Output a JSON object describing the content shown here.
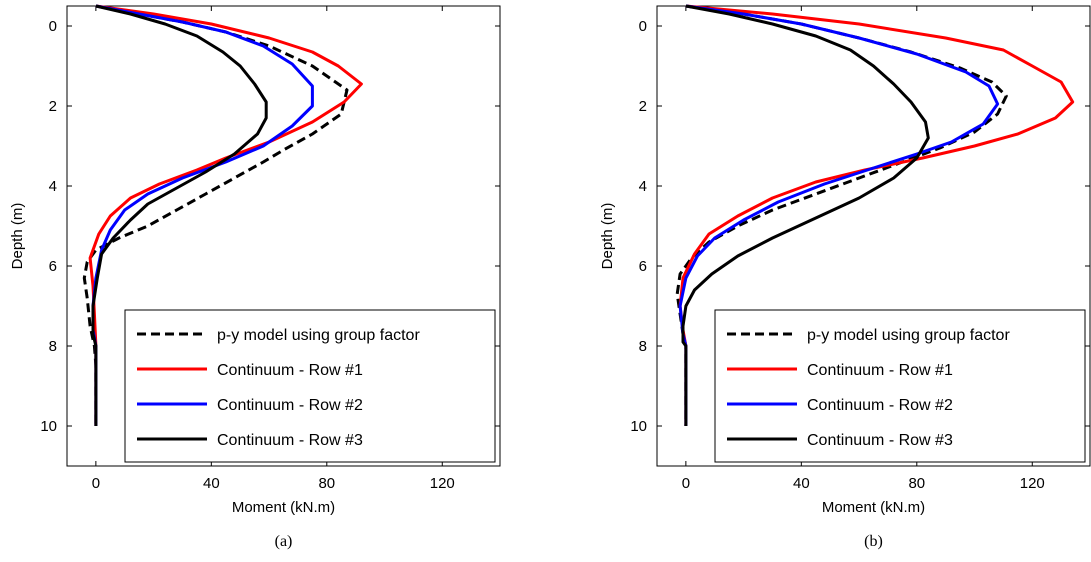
{
  "chart_data": [
    {
      "type": "line",
      "panel_label": "(a)",
      "xlabel": "Moment (kN.m)",
      "ylabel": "Depth (m)",
      "xlim": [
        -10,
        140
      ],
      "ylim": [
        -0.5,
        11
      ],
      "y_inverted": true,
      "xticks": [
        0,
        40,
        80,
        120
      ],
      "yticks": [
        0,
        2,
        4,
        6,
        8,
        10
      ],
      "grid": false,
      "legend_position": "bottom-right",
      "series": [
        {
          "name": "p-y model using group factor",
          "color": "#000000",
          "dash": "dashed",
          "x": [
            0,
            15,
            30,
            45,
            60,
            75,
            87,
            85,
            75,
            65,
            58,
            48,
            38,
            28,
            18,
            8,
            0,
            -3,
            -4,
            -3,
            -2,
            -0.5,
            0,
            0,
            0
          ],
          "y": [
            -0.5,
            -0.3,
            -0.1,
            0.15,
            0.5,
            1.0,
            1.6,
            2.2,
            2.7,
            3.1,
            3.4,
            3.8,
            4.2,
            4.6,
            5.0,
            5.3,
            5.6,
            5.9,
            6.3,
            6.8,
            7.5,
            8.0,
            8.5,
            9.0,
            10.0
          ]
        },
        {
          "name": "Continuum - Row #1",
          "color": "#ff0000",
          "dash": "solid",
          "x": [
            0,
            20,
            40,
            60,
            75,
            84,
            92,
            86,
            75,
            60,
            45,
            35,
            22,
            12,
            5,
            1,
            -2,
            -1,
            -0.5,
            0,
            0,
            0
          ],
          "y": [
            -0.5,
            -0.3,
            -0.05,
            0.3,
            0.65,
            1.0,
            1.45,
            1.9,
            2.4,
            2.9,
            3.3,
            3.6,
            3.95,
            4.3,
            4.75,
            5.2,
            5.8,
            6.5,
            7.2,
            8.0,
            9.0,
            10.0
          ]
        },
        {
          "name": "Continuum - Row #2",
          "color": "#0000ff",
          "dash": "solid",
          "x": [
            0,
            15,
            30,
            45,
            58,
            68,
            75,
            75,
            68,
            58,
            45,
            30,
            18,
            10,
            5,
            2,
            0,
            -1,
            -1,
            0,
            0,
            0
          ],
          "y": [
            -0.5,
            -0.3,
            -0.1,
            0.15,
            0.5,
            0.95,
            1.5,
            2.0,
            2.5,
            3.0,
            3.4,
            3.8,
            4.2,
            4.6,
            5.1,
            5.6,
            6.3,
            7.0,
            7.6,
            8.0,
            9.0,
            10.0
          ]
        },
        {
          "name": "Continuum - Row #3",
          "color": "#000000",
          "dash": "solid",
          "x": [
            0,
            12,
            24,
            35,
            44,
            50,
            55,
            59,
            59,
            56,
            48,
            38,
            28,
            18,
            12,
            6,
            2,
            0.5,
            -1,
            -1,
            0,
            0,
            0
          ],
          "y": [
            -0.5,
            -0.3,
            -0.05,
            0.25,
            0.65,
            1.0,
            1.45,
            1.9,
            2.3,
            2.7,
            3.2,
            3.65,
            4.05,
            4.45,
            4.85,
            5.3,
            5.7,
            6.3,
            7.0,
            7.7,
            8.0,
            9.0,
            10.0
          ]
        }
      ]
    },
    {
      "type": "line",
      "panel_label": "(b)",
      "xlabel": "Moment (kN.m)",
      "ylabel": "Depth (m)",
      "xlim": [
        -10,
        140
      ],
      "ylim": [
        -0.5,
        11
      ],
      "y_inverted": true,
      "xticks": [
        0,
        40,
        80,
        120
      ],
      "yticks": [
        0,
        2,
        4,
        6,
        8,
        10
      ],
      "grid": false,
      "legend_position": "bottom-right",
      "series": [
        {
          "name": "p-y model using group factor",
          "color": "#000000",
          "dash": "dashed",
          "x": [
            0,
            20,
            40,
            60,
            78,
            95,
            106,
            111,
            108,
            100,
            88,
            75,
            60,
            45,
            30,
            18,
            8,
            2,
            -2,
            -3,
            -2,
            -1,
            0,
            0,
            0
          ],
          "y": [
            -0.5,
            -0.3,
            -0.05,
            0.3,
            0.65,
            1.05,
            1.4,
            1.75,
            2.2,
            2.65,
            3.05,
            3.4,
            3.8,
            4.2,
            4.6,
            5.0,
            5.4,
            5.8,
            6.2,
            6.7,
            7.2,
            7.7,
            8.0,
            9.0,
            10.0
          ]
        },
        {
          "name": "Continuum - Row #1",
          "color": "#ff0000",
          "dash": "solid",
          "x": [
            0,
            30,
            60,
            90,
            110,
            120,
            130,
            134,
            128,
            115,
            100,
            82,
            62,
            45,
            30,
            18,
            8,
            3,
            -1,
            -2,
            -1,
            0,
            0,
            0
          ],
          "y": [
            -0.5,
            -0.3,
            -0.05,
            0.3,
            0.6,
            1.0,
            1.4,
            1.9,
            2.3,
            2.7,
            3.0,
            3.3,
            3.6,
            3.9,
            4.3,
            4.75,
            5.2,
            5.7,
            6.3,
            7.0,
            7.6,
            8.0,
            9.0,
            10.0
          ]
        },
        {
          "name": "Continuum - Row #2",
          "color": "#0000ff",
          "dash": "solid",
          "x": [
            0,
            20,
            40,
            60,
            80,
            97,
            105,
            108,
            103,
            92,
            80,
            65,
            48,
            32,
            20,
            10,
            4,
            0,
            -2,
            -1,
            0,
            0,
            0
          ],
          "y": [
            -0.5,
            -0.3,
            -0.05,
            0.3,
            0.7,
            1.15,
            1.5,
            1.95,
            2.45,
            2.9,
            3.2,
            3.55,
            3.95,
            4.4,
            4.85,
            5.3,
            5.75,
            6.3,
            7.0,
            7.7,
            8.0,
            9.0,
            10.0
          ]
        },
        {
          "name": "Continuum - Row #3",
          "color": "#000000",
          "dash": "solid",
          "x": [
            0,
            15,
            30,
            45,
            57,
            65,
            72,
            78,
            83,
            84,
            80,
            72,
            60,
            45,
            30,
            18,
            9,
            3,
            0,
            -1,
            -1,
            0,
            0,
            0
          ],
          "y": [
            -0.5,
            -0.3,
            -0.05,
            0.25,
            0.6,
            1.0,
            1.45,
            1.9,
            2.4,
            2.8,
            3.3,
            3.8,
            4.3,
            4.8,
            5.3,
            5.75,
            6.2,
            6.6,
            7.0,
            7.5,
            7.9,
            8.0,
            9.0,
            10.0
          ]
        }
      ]
    }
  ]
}
